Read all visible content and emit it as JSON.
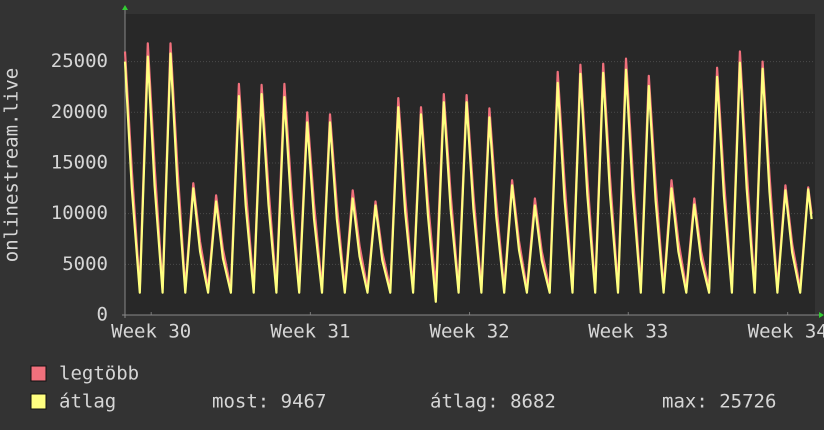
{
  "chart_data": {
    "type": "line",
    "y_label": "onlinestream.live",
    "x": [
      0,
      0.3,
      0.65,
      1,
      1.3,
      1.65,
      2,
      2.3,
      2.65,
      3,
      3.3,
      3.65,
      4,
      4.3,
      4.65,
      5,
      5.3,
      5.65,
      6,
      6.3,
      6.65,
      7,
      7.3,
      7.65,
      8,
      8.3,
      8.65,
      9,
      9.3,
      9.65,
      10,
      10.3,
      10.65,
      11,
      11.3,
      11.65,
      12,
      12.3,
      12.65,
      13,
      13.3,
      13.65,
      14,
      14.3,
      14.65,
      15,
      15.3,
      15.65,
      16,
      16.3,
      16.65,
      17,
      17.3,
      17.65,
      18,
      18.3,
      18.65,
      19,
      19.3,
      19.65,
      20,
      20.3,
      20.65,
      21,
      21.3,
      21.65,
      22,
      22.3,
      22.65,
      23,
      23.3,
      23.65,
      24,
      24.3,
      24.65,
      25,
      25.3,
      25.65,
      26,
      26.3,
      26.65,
      27,
      27.3,
      27.65,
      28,
      28.3,
      28.65,
      29,
      29.3,
      29.65,
      30,
      30.15
    ],
    "series": [
      {
        "name": "legtöbb",
        "color": "#f0707c",
        "values": [
          26000,
          14300,
          2600,
          26800,
          14700,
          2600,
          26800,
          14700,
          2600,
          13000,
          7200,
          2600,
          11800,
          6500,
          2600,
          22800,
          12500,
          2600,
          22700,
          12500,
          2600,
          22800,
          12500,
          2600,
          20000,
          11000,
          2600,
          19800,
          10900,
          2600,
          12300,
          6800,
          2600,
          11200,
          6200,
          2600,
          21400,
          11800,
          2600,
          20500,
          11300,
          2600,
          21800,
          12000,
          2600,
          21700,
          11900,
          2600,
          20400,
          11200,
          2600,
          13300,
          7300,
          2600,
          11500,
          6300,
          2600,
          24000,
          13200,
          2600,
          24700,
          13600,
          2600,
          24800,
          13600,
          2600,
          25300,
          13900,
          2600,
          23600,
          13000,
          2600,
          13300,
          7300,
          2600,
          11500,
          6300,
          2600,
          24400,
          13400,
          2600,
          26000,
          14300,
          2600,
          25000,
          13800,
          2600,
          12800,
          7000,
          2600,
          12600,
          10000
        ]
      },
      {
        "name": "átlag",
        "color": "#ffff80",
        "values": [
          25000,
          12500,
          2200,
          25500,
          12750,
          2200,
          25800,
          12900,
          2200,
          12500,
          6250,
          2200,
          11200,
          5600,
          2200,
          21600,
          10800,
          2200,
          21800,
          10900,
          2200,
          21500,
          10750,
          2200,
          19000,
          9500,
          2200,
          19000,
          9500,
          2200,
          11500,
          5750,
          2200,
          10800,
          5400,
          2200,
          20500,
          10250,
          2200,
          19800,
          9900,
          1300,
          21000,
          10500,
          2200,
          21000,
          10500,
          2200,
          19500,
          9750,
          2200,
          12800,
          6400,
          2200,
          10800,
          5400,
          2200,
          22900,
          11450,
          2200,
          23800,
          11900,
          2200,
          23900,
          11950,
          2200,
          24200,
          12100,
          2200,
          22600,
          11300,
          2200,
          12500,
          6250,
          2200,
          10900,
          5450,
          2200,
          23500,
          11750,
          2200,
          24900,
          12450,
          2200,
          24300,
          12150,
          2200,
          12300,
          6150,
          2200,
          12400,
          9467
        ]
      }
    ],
    "xlim": [
      0,
      30.3
    ],
    "xticks": [
      {
        "value": 1.15,
        "label": "Week 30"
      },
      {
        "value": 8.14,
        "label": "Week 31"
      },
      {
        "value": 15.13,
        "label": "Week 32"
      },
      {
        "value": 22.1,
        "label": "Week 33"
      },
      {
        "value": 29.1,
        "label": "Week 34"
      }
    ],
    "ylim": [
      0,
      29700
    ],
    "yticks": [
      0,
      5000,
      10000,
      15000,
      20000,
      25000
    ],
    "grid": true,
    "summary": [
      "most: 9467",
      "átlag: 8682",
      "max: 25726"
    ]
  }
}
